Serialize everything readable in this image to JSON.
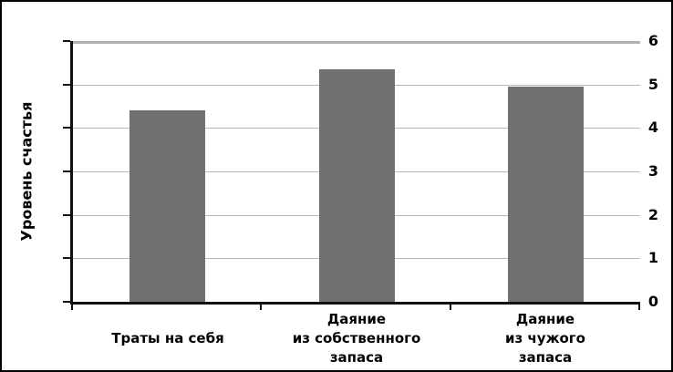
{
  "chart_data": {
    "type": "bar",
    "title": "",
    "xlabel": "",
    "ylabel": "Уровень счастья",
    "categories": [
      "Траты на себя",
      "Даяние из собственного запаса",
      "Даяние из чужого запаса"
    ],
    "category_lines": [
      [
        "Траты на себя"
      ],
      [
        "Даяние",
        "из собственного",
        "запаса"
      ],
      [
        "Даяние",
        "из чужого",
        "запаса"
      ]
    ],
    "values": [
      4.4,
      5.35,
      4.95
    ],
    "ylim": [
      0,
      6
    ],
    "yticks": [
      0,
      1,
      2,
      3,
      4,
      5,
      6
    ],
    "grid": true,
    "legend": false,
    "colors": {
      "bar": "#716F6F",
      "gridline": "#B6B6B6",
      "top_gridline": "#B0B0B0",
      "axis": "#111111",
      "text": "#000000",
      "background": "#FFFFFF",
      "frame_border": "#000000"
    }
  }
}
